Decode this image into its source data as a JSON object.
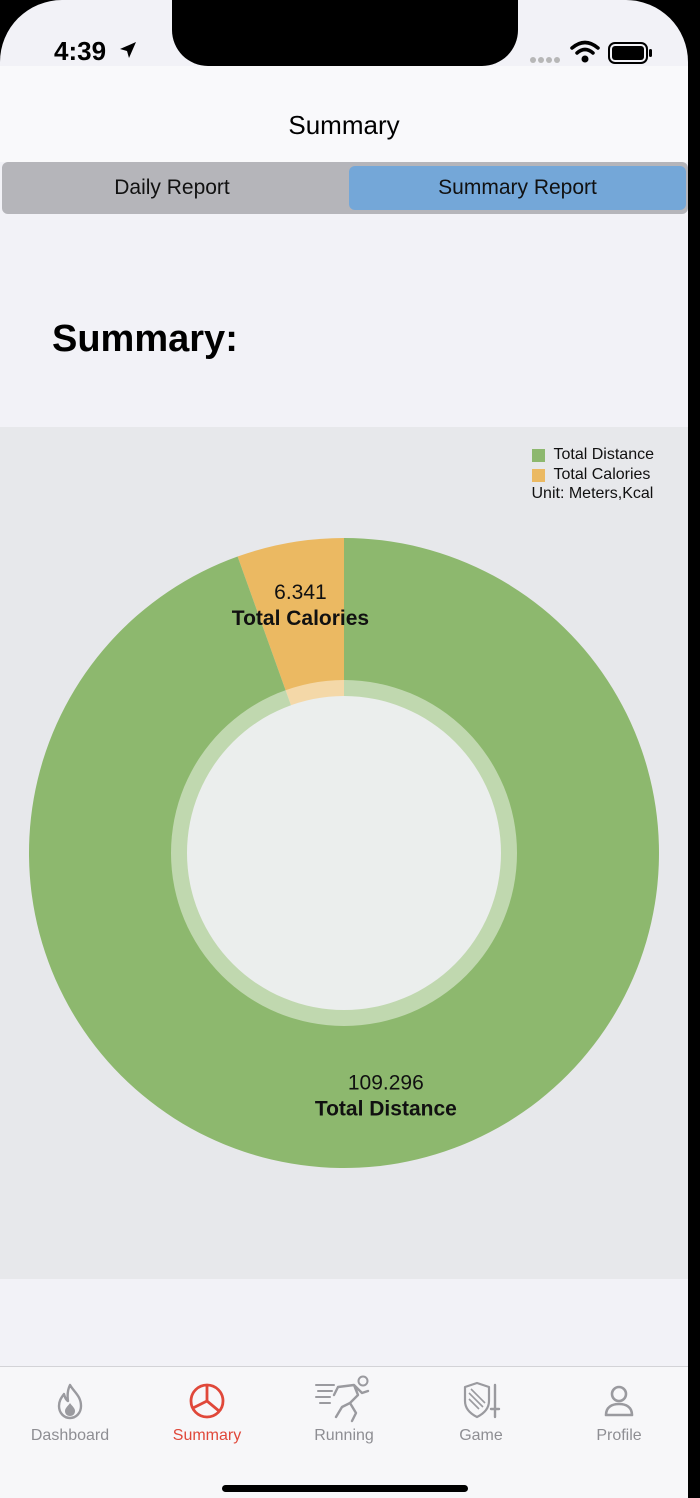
{
  "status_bar": {
    "time": "4:39"
  },
  "nav": {
    "title": "Summary"
  },
  "segmented_control": {
    "left": "Daily Report",
    "right": "Summary Report",
    "selected": "Summary Report"
  },
  "summary_heading": "Summary:",
  "legend": {
    "items": [
      {
        "label": "Total Distance",
        "color": "#8db86e"
      },
      {
        "label": "Total Calories",
        "color": "#ebb962"
      }
    ],
    "unit": "Unit: Meters,Kcal"
  },
  "chart_data": {
    "type": "pie",
    "donut": true,
    "slices": [
      {
        "label": "Total Distance",
        "value": 109.296,
        "color": "#8db86e"
      },
      {
        "label": "Total Calories",
        "value": 6.341,
        "color": "#ebb962"
      }
    ],
    "legend_position": "top-right"
  },
  "tabbar": {
    "items": [
      {
        "label": "Dashboard",
        "icon": "flame-icon",
        "active": false
      },
      {
        "label": "Summary",
        "icon": "pie-chart-icon",
        "active": true
      },
      {
        "label": "Running",
        "icon": "runner-icon",
        "active": false
      },
      {
        "label": "Game",
        "icon": "shield-sword-icon",
        "active": false
      },
      {
        "label": "Profile",
        "icon": "person-icon",
        "active": false
      }
    ],
    "active_color": "#e0483a",
    "inactive_color": "#8e8e93"
  }
}
